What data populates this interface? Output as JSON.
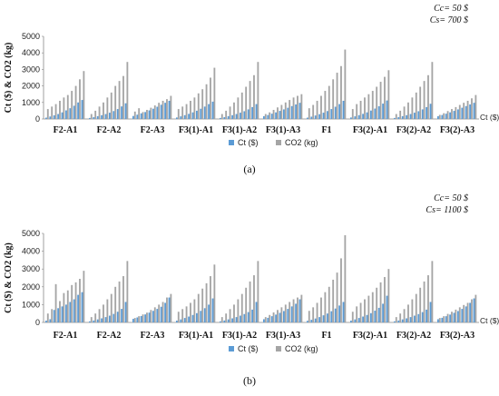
{
  "chart_data": [
    {
      "type": "bar",
      "caption": "(a)",
      "annotation": [
        "Cc= 50 $",
        "Cs= 700 $"
      ],
      "ylabel": "Ct ($) & CO2 (kg)",
      "xlabel": "Ct ($)",
      "ylim": [
        0,
        5000
      ],
      "yticks": [
        "0",
        "1000",
        "2000",
        "3000",
        "4000",
        "5000"
      ],
      "legend": {
        "placement": "bottom",
        "entries": [
          "Ct ($)",
          "CO2 (kg)"
        ]
      },
      "colors": {
        "ct": "#5b9bd5",
        "co2": "#a5a5a5"
      },
      "categories": [
        "F2-A1",
        "F2-A2",
        "F2-A3",
        "F3(1)-A1",
        "F3(1)-A2",
        "F3(1)-A3",
        "F1",
        "F3(2)-A1",
        "F3(2)-A2",
        "F3(2)-A3"
      ],
      "series": [
        {
          "name": "Ct ($)",
          "values": [
            [
              80,
              150,
              220,
              300,
              400,
              520,
              650,
              800,
              1000,
              1150
            ],
            [
              60,
              110,
              170,
              230,
              300,
              380,
              480,
              600,
              760,
              950
            ],
            [
              180,
              260,
              340,
              420,
              520,
              620,
              740,
              860,
              980,
              1100
            ],
            [
              90,
              160,
              230,
              310,
              400,
              500,
              620,
              750,
              900,
              1050
            ],
            [
              60,
              110,
              170,
              230,
              300,
              380,
              470,
              580,
              720,
              900
            ],
            [
              170,
              240,
              320,
              400,
              490,
              580,
              680,
              780,
              880,
              980
            ],
            [
              80,
              140,
              210,
              290,
              380,
              480,
              600,
              740,
              900,
              1100
            ],
            [
              90,
              160,
              230,
              310,
              400,
              510,
              630,
              770,
              930,
              1120
            ],
            [
              60,
              110,
              170,
              230,
              300,
              380,
              470,
              580,
              720,
              920
            ],
            [
              170,
              240,
              320,
              400,
              490,
              580,
              680,
              780,
              880,
              980
            ]
          ]
        },
        {
          "name": "CO2 (kg)",
          "values": [
            [
              600,
              750,
              900,
              1100,
              1300,
              1450,
              1700,
              2000,
              2400,
              2900
            ],
            [
              300,
              500,
              750,
              1000,
              1300,
              1600,
              2000,
              2300,
              2600,
              3450
            ],
            [
              450,
              650,
              420,
              550,
              680,
              820,
              980,
              1100,
              1200,
              1400
            ],
            [
              600,
              750,
              900,
              1100,
              1300,
              1550,
              1800,
              2100,
              2500,
              3100
            ],
            [
              300,
              500,
              750,
              1000,
              1300,
              1600,
              1950,
              2300,
              2650,
              3450
            ],
            [
              300,
              400,
              550,
              700,
              850,
              1000,
              1150,
              1300,
              1400,
              1500
            ],
            [
              650,
              850,
              1100,
              1400,
              1700,
              2000,
              2400,
              2800,
              3200,
              4200
            ],
            [
              600,
              900,
              1100,
              1300,
              1500,
              1700,
              1950,
              2250,
              2550,
              2950
            ],
            [
              300,
              500,
              750,
              1000,
              1300,
              1600,
              1950,
              2300,
              2650,
              3450
            ],
            [
              250,
              350,
              480,
              600,
              720,
              850,
              980,
              1100,
              1250,
              1450
            ]
          ]
        }
      ]
    },
    {
      "type": "bar",
      "caption": "(b)",
      "annotation": [
        "Cc= 50 $",
        "Cs= 1100 $"
      ],
      "ylabel": "Ct ($) & CO2 (kg)",
      "xlabel": "Ct ($)",
      "ylim": [
        0,
        5000
      ],
      "yticks": [
        "0",
        "1000",
        "2000",
        "3000",
        "4000",
        "5000"
      ],
      "legend": {
        "placement": "bottom",
        "entries": [
          "Ct ($)",
          "CO2 (kg)"
        ]
      },
      "colors": {
        "ct": "#5b9bd5",
        "co2": "#a5a5a5"
      },
      "categories": [
        "F2-A1",
        "F2-A2",
        "F2-A3",
        "F3(1)-A1",
        "F3(1)-A2",
        "F3(1)-A3",
        "F1",
        "F3(2)-A1",
        "F3(2)-A2",
        "F3(2)-A3"
      ],
      "series": [
        {
          "name": "Ct ($)",
          "values": [
            [
              100,
              180,
              700,
              800,
              900,
              1000,
              1150,
              1300,
              1550,
              1700
            ],
            [
              60,
              110,
              170,
              230,
              300,
              380,
              480,
              600,
              760,
              1150
            ],
            [
              200,
              280,
              360,
              450,
              550,
              650,
              760,
              880,
              1100,
              1400
            ],
            [
              100,
              170,
              250,
              330,
              420,
              520,
              650,
              800,
              1000,
              1350
            ],
            [
              60,
              110,
              170,
              230,
              300,
              380,
              470,
              580,
              720,
              1150
            ],
            [
              180,
              260,
              350,
              440,
              540,
              640,
              760,
              900,
              1050,
              1300
            ],
            [
              90,
              150,
              220,
              300,
              400,
              500,
              630,
              780,
              950,
              1150
            ],
            [
              100,
              170,
              250,
              330,
              420,
              520,
              660,
              820,
              1050,
              1500
            ],
            [
              60,
              110,
              170,
              230,
              300,
              380,
              470,
              580,
              720,
              1150
            ],
            [
              180,
              260,
              350,
              440,
              540,
              640,
              760,
              900,
              1100,
              1350
            ]
          ]
        },
        {
          "name": "CO2 (kg)",
          "values": [
            [
              500,
              750,
              2150,
              1200,
              1650,
              1800,
              2100,
              2250,
              2450,
              2900
            ],
            [
              300,
              500,
              750,
              1000,
              1300,
              1600,
              2000,
              2300,
              2600,
              3450
            ],
            [
              250,
              350,
              450,
              550,
              700,
              850,
              1000,
              1150,
              1400,
              1600
            ],
            [
              600,
              750,
              900,
              1100,
              1300,
              1600,
              1900,
              2200,
              2600,
              3250
            ],
            [
              300,
              500,
              750,
              1000,
              1300,
              1600,
              1950,
              2300,
              2650,
              3450
            ],
            [
              300,
              420,
              560,
              700,
              850,
              1000,
              1150,
              1300,
              1400,
              1550
            ],
            [
              650,
              850,
              1100,
              1400,
              1700,
              2000,
              2400,
              2800,
              3600,
              4900
            ],
            [
              600,
              900,
              1100,
              1300,
              1500,
              1700,
              1950,
              2250,
              2550,
              3000
            ],
            [
              300,
              500,
              750,
              1000,
              1300,
              1600,
              1950,
              2300,
              2650,
              3450
            ],
            [
              250,
              350,
              480,
              600,
              720,
              850,
              980,
              1100,
              1300,
              1550
            ]
          ]
        }
      ]
    }
  ]
}
